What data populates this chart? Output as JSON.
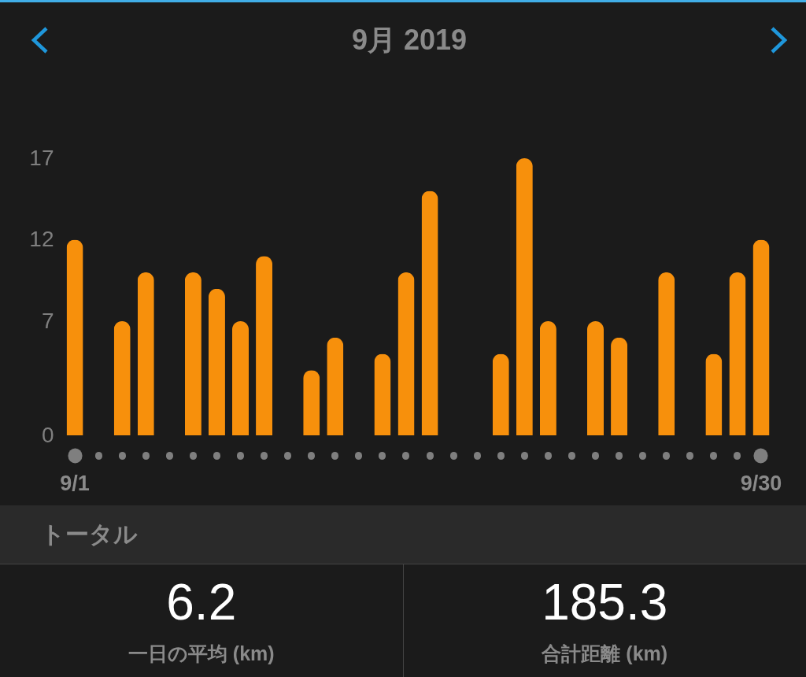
{
  "chart_data": [
    {
      "type": "bar",
      "title": "9月 2019",
      "categories": [
        "9/1",
        null,
        null,
        null,
        null,
        null,
        null,
        null,
        null,
        null,
        null,
        null,
        null,
        null,
        null,
        null,
        null,
        null,
        null,
        null,
        null,
        null,
        null,
        null,
        null,
        null,
        null,
        null,
        null,
        "9/30"
      ],
      "values": [
        12,
        0,
        7,
        10,
        0,
        10,
        9,
        7,
        11,
        0,
        4,
        6,
        0,
        5,
        10,
        15,
        0,
        0,
        5,
        17,
        7,
        0,
        7,
        6,
        0,
        10,
        0,
        5,
        10,
        12
      ],
      "color": "#f7900c",
      "ylim": [
        0,
        17
      ],
      "yticks": [
        0,
        7,
        12,
        17
      ]
    },
    {
      "type": "other",
      "title": "トータル",
      "annotations": [
        "6.2",
        "一日の平均 (km)",
        "185.3",
        "合計距離 (km)"
      ]
    }
  ]
}
